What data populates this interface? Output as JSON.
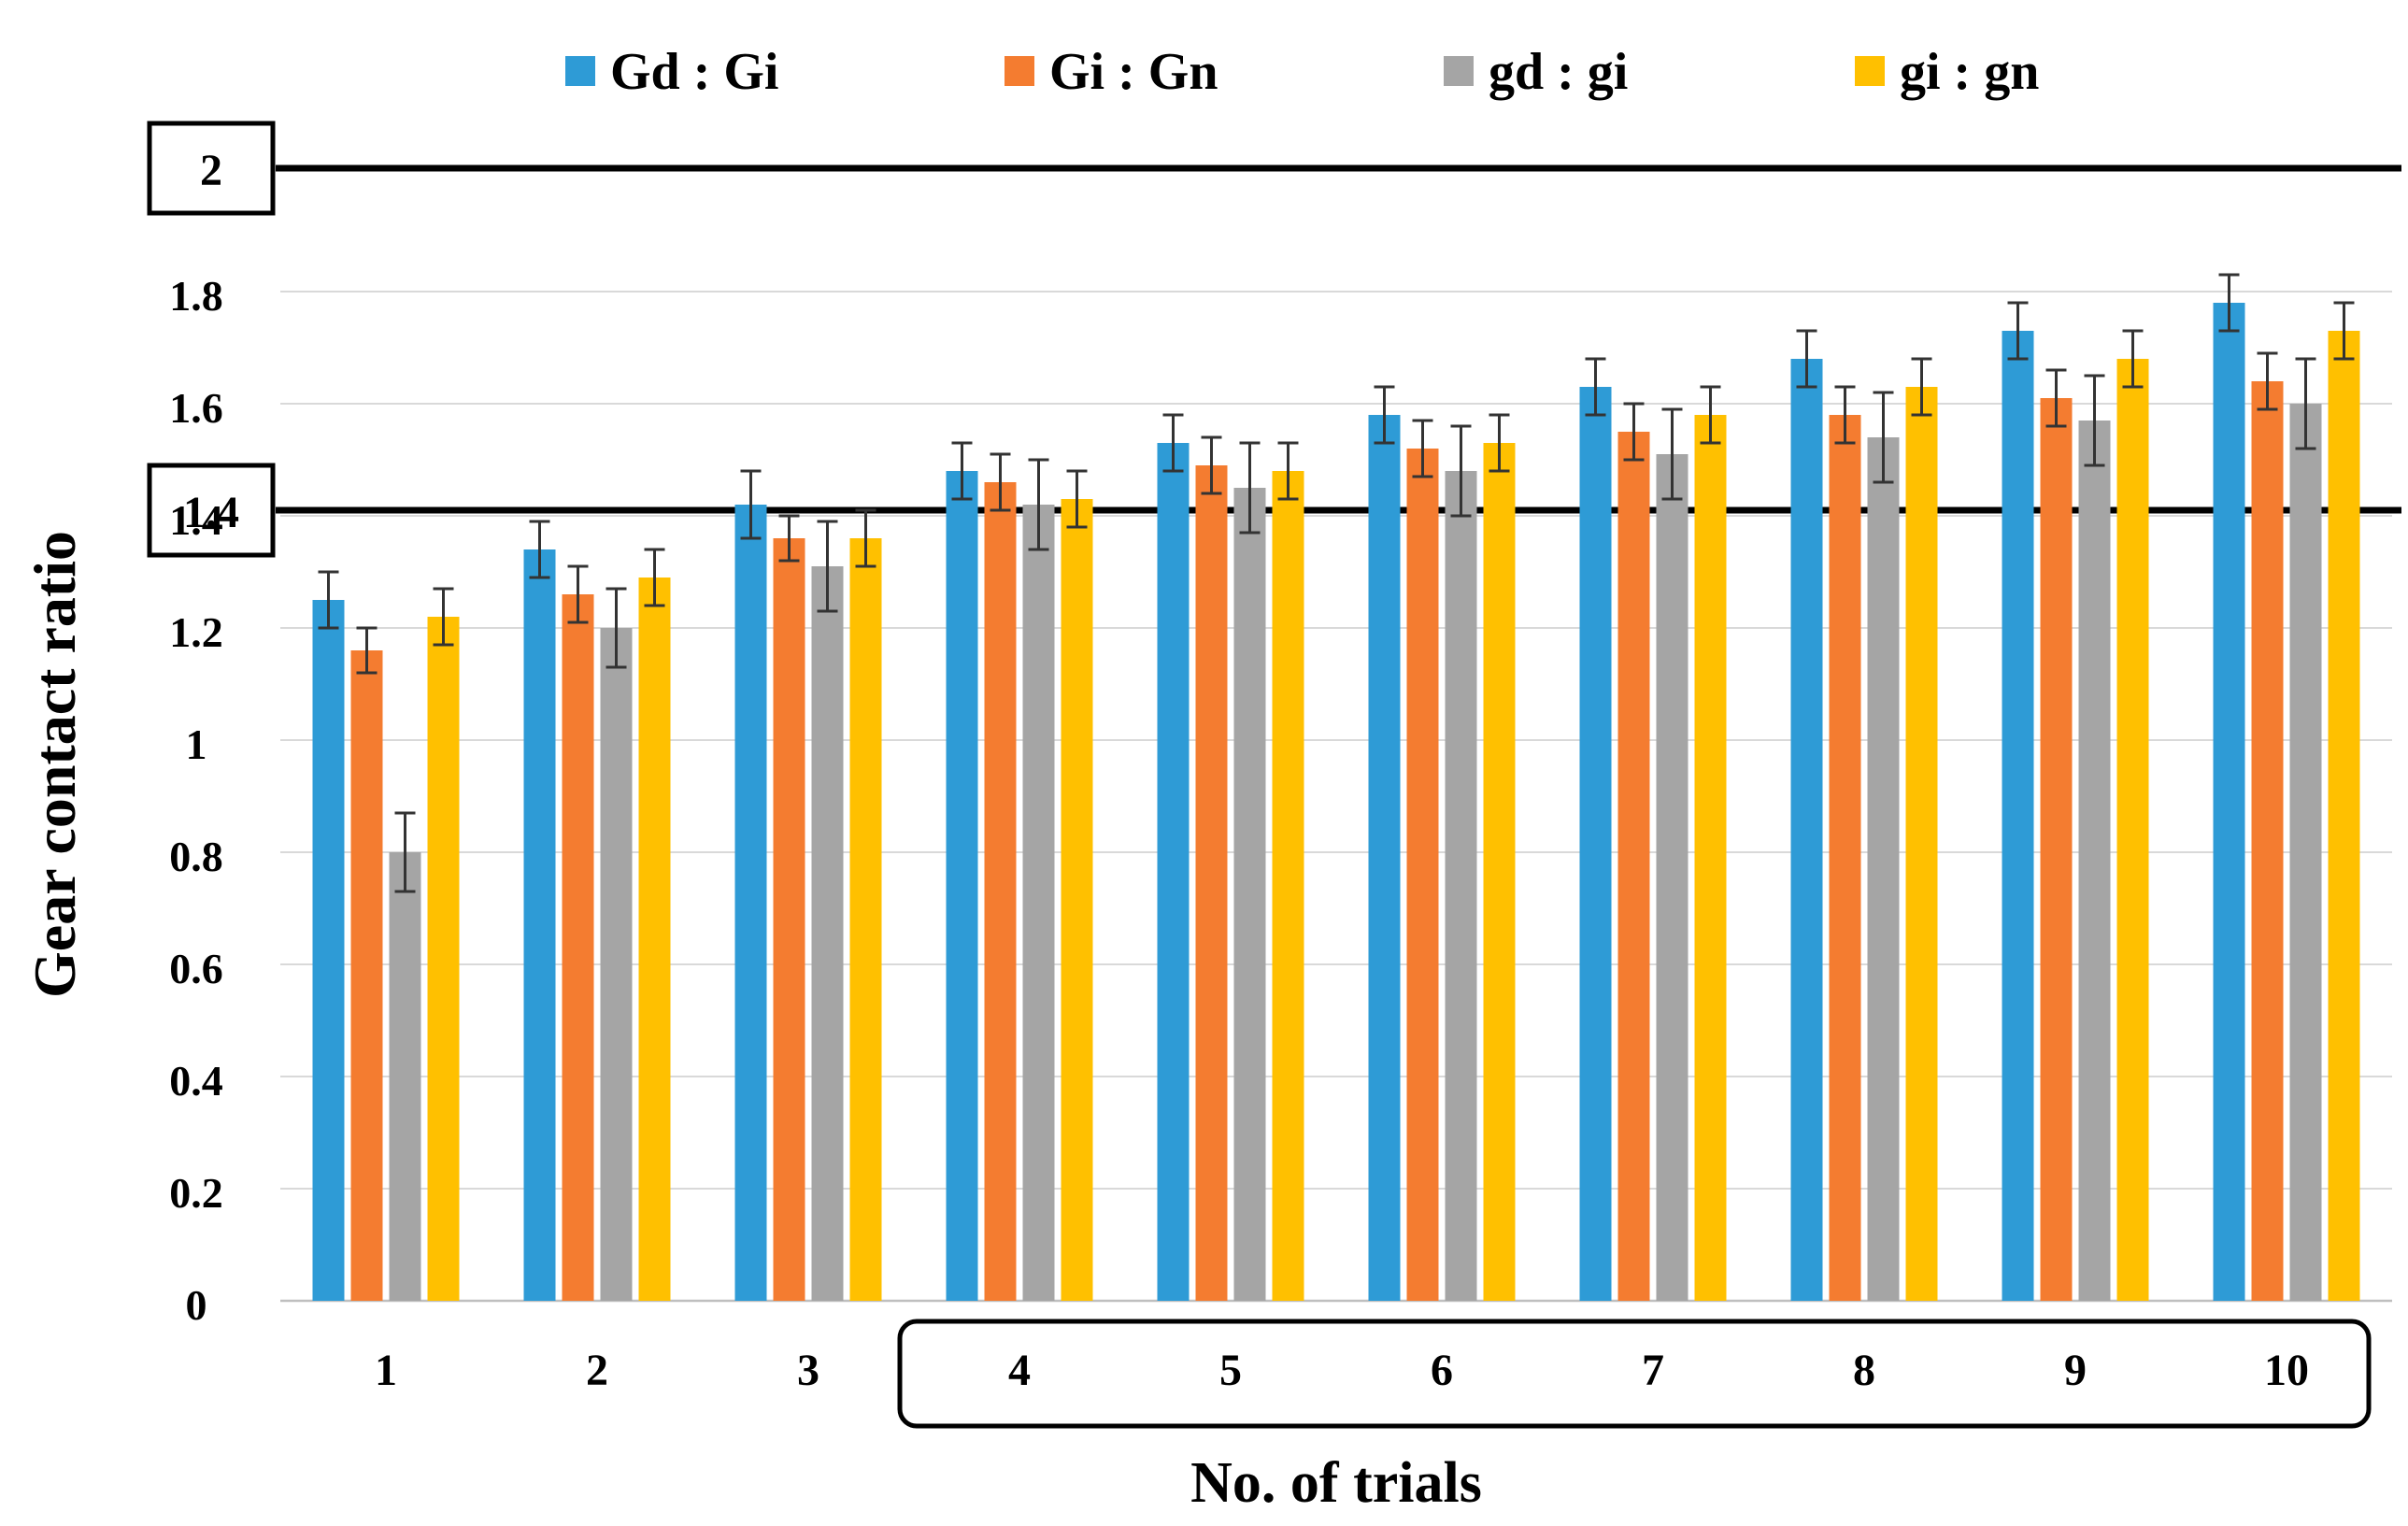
{
  "chart_data": {
    "type": "bar",
    "title": "",
    "xlabel": "No. of trials",
    "ylabel": "Gear contact ratio",
    "ylim": [
      0,
      2.0
    ],
    "yticks": [
      "0",
      "0.2",
      "0.4",
      "0.6",
      "0.8",
      "1",
      "1.2",
      "1.4",
      "1.6",
      "1.8"
    ],
    "grid": true,
    "legend_position": "top",
    "categories": [
      "1",
      "2",
      "3",
      "4",
      "5",
      "6",
      "7",
      "8",
      "9",
      "10"
    ],
    "series": [
      {
        "name": "Gd : Gi",
        "color": "#2e9bd6",
        "values": [
          1.25,
          1.34,
          1.42,
          1.48,
          1.53,
          1.58,
          1.63,
          1.68,
          1.73,
          1.78
        ],
        "errors": [
          0.05,
          0.05,
          0.06,
          0.05,
          0.05,
          0.05,
          0.05,
          0.05,
          0.05,
          0.05
        ]
      },
      {
        "name": "Gi : Gn",
        "color": "#f47c30",
        "values": [
          1.16,
          1.26,
          1.36,
          1.46,
          1.49,
          1.52,
          1.55,
          1.58,
          1.61,
          1.64
        ],
        "errors": [
          0.04,
          0.05,
          0.04,
          0.05,
          0.05,
          0.05,
          0.05,
          0.05,
          0.05,
          0.05
        ]
      },
      {
        "name": "gd : gi",
        "color": "#a5a5a5",
        "values": [
          0.8,
          1.2,
          1.31,
          1.42,
          1.45,
          1.48,
          1.51,
          1.54,
          1.57,
          1.6
        ],
        "errors": [
          0.07,
          0.07,
          0.08,
          0.08,
          0.08,
          0.08,
          0.08,
          0.08,
          0.08,
          0.08
        ]
      },
      {
        "name": "gi : gn",
        "color": "#ffc000",
        "values": [
          1.22,
          1.29,
          1.36,
          1.43,
          1.48,
          1.53,
          1.58,
          1.63,
          1.68,
          1.73
        ],
        "errors": [
          0.05,
          0.05,
          0.05,
          0.05,
          0.05,
          0.05,
          0.05,
          0.05,
          0.05,
          0.05
        ]
      }
    ],
    "reference_lines": [
      {
        "value": 2.0,
        "label": "2"
      },
      {
        "value": 1.41,
        "label": "1.4"
      }
    ],
    "highlighted_categories": [
      "4",
      "10"
    ]
  }
}
